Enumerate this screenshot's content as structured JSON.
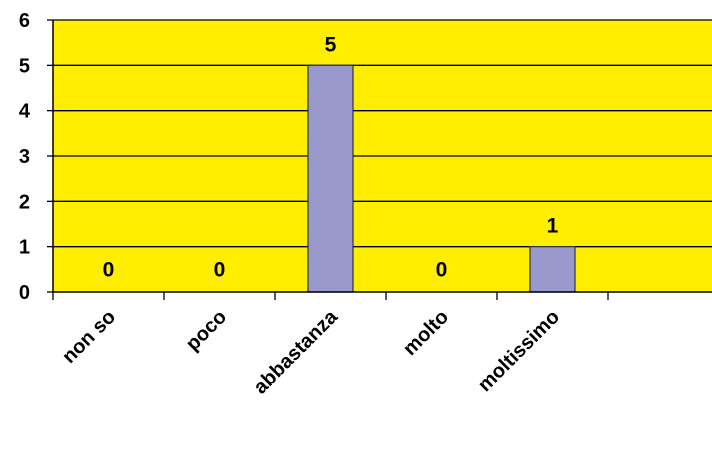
{
  "chart_data": {
    "type": "bar",
    "title": "",
    "xlabel": "",
    "ylabel": "",
    "categories": [
      "non so",
      "poco",
      "abbastanza",
      "molto",
      "moltissimo"
    ],
    "values": [
      0,
      0,
      5,
      0,
      1
    ],
    "data_labels": [
      "0",
      "0",
      "5",
      "0",
      "1"
    ],
    "ylim": [
      0,
      6
    ],
    "yticks": [
      "0",
      "1",
      "2",
      "3",
      "4",
      "5",
      "6"
    ],
    "grid": true,
    "plot_background": "#ffee00",
    "bar_color": "#9999cc",
    "bar_edge_color": "#333333"
  }
}
